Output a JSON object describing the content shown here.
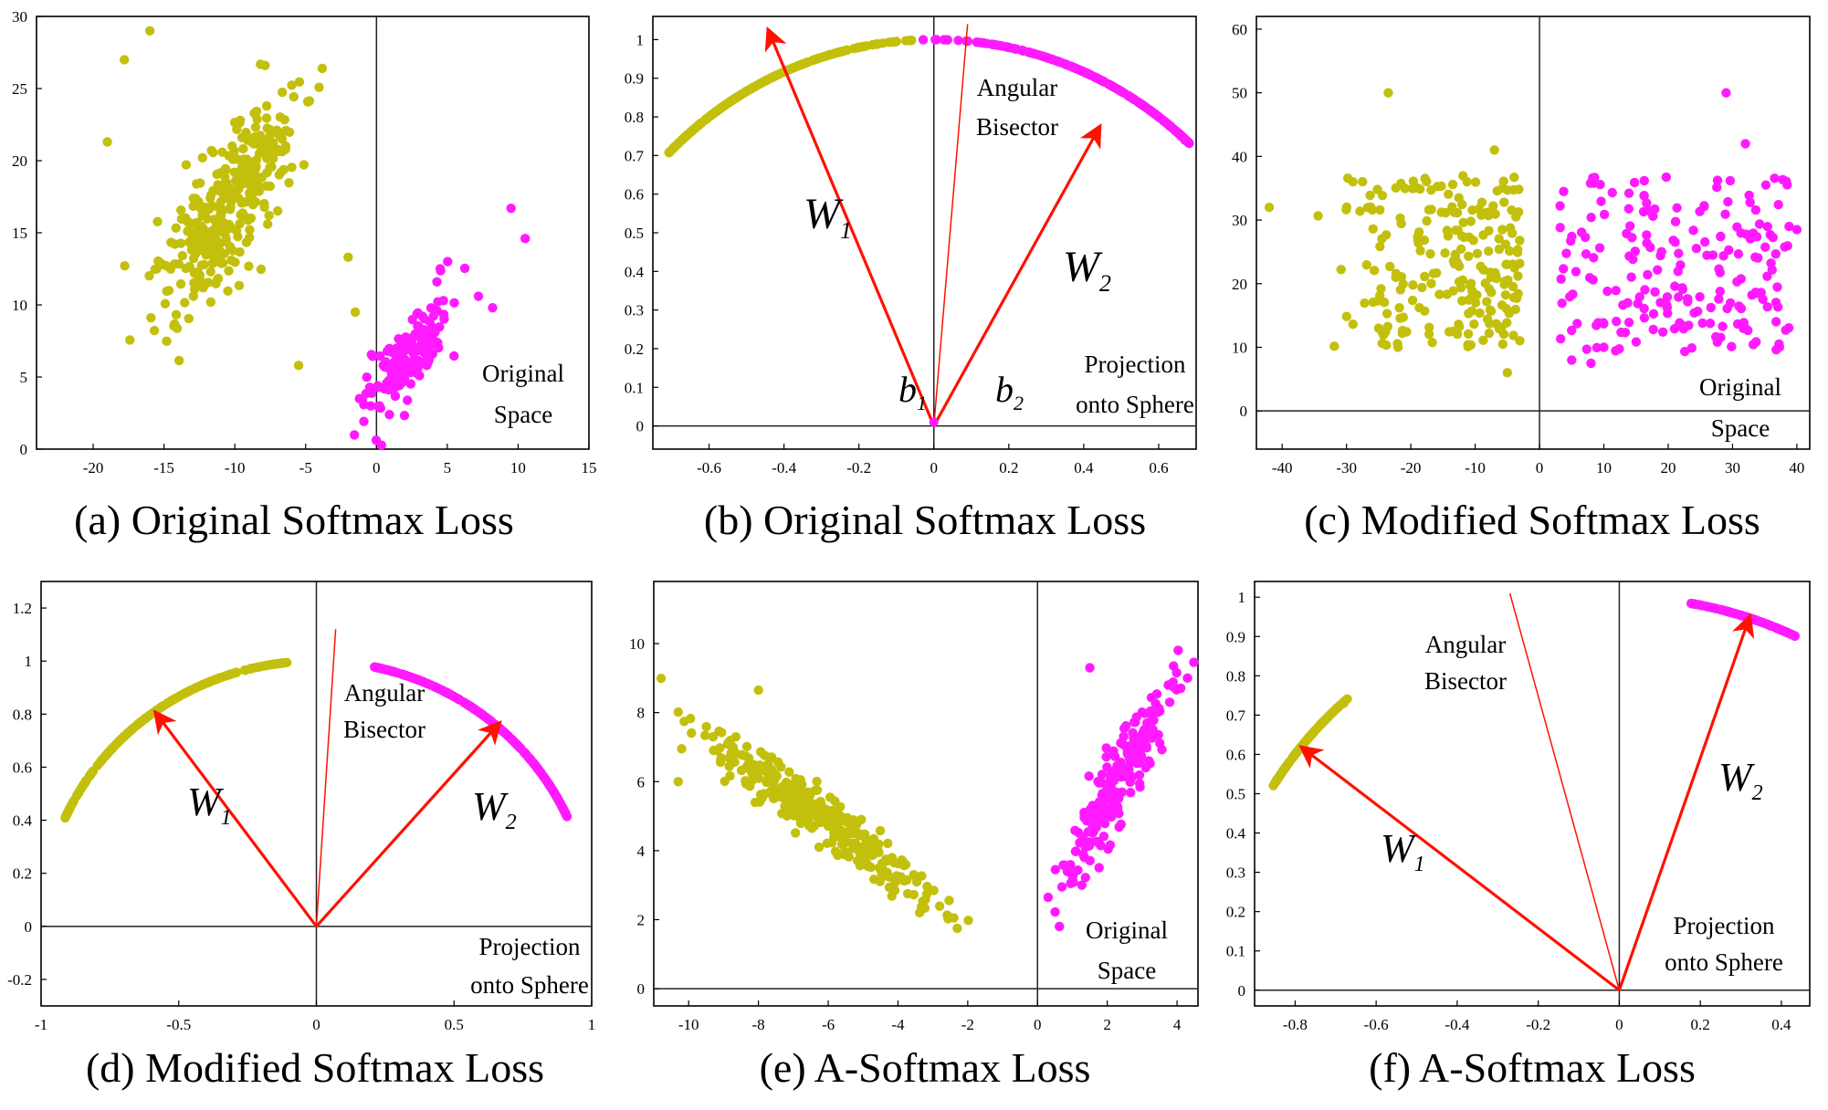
{
  "colors": {
    "class1": "#c3c00d",
    "class2": "#ff1aff",
    "vector": "#ff1100",
    "axis": "#000000"
  },
  "chart_data": [
    {
      "id": "a",
      "type": "scatter",
      "space": "original",
      "caption": "(a) Original Softmax Loss",
      "annotations": [
        "Original",
        "Space"
      ],
      "xlim": [
        -24,
        15
      ],
      "ylim": [
        0,
        30
      ],
      "xticks": [
        -20,
        -15,
        -10,
        -5,
        0,
        5,
        10,
        15
      ],
      "yticks": [
        0,
        5,
        10,
        15,
        20,
        25,
        30
      ],
      "series": [
        {
          "cluster": {
            "type": "ellipse",
            "n": 340,
            "center": [
              -10.5,
              17
            ],
            "major": 7.5,
            "minor": 2.6,
            "angle_deg": 60,
            "seed": 11
          },
          "extra": [
            [
              -19,
              21.3
            ],
            [
              -17.8,
              27
            ],
            [
              -14.5,
              30
            ],
            [
              -16,
              29
            ],
            [
              -2,
              13.3
            ],
            [
              -1.5,
              9.5
            ],
            [
              -5.5,
              5.8
            ]
          ]
        },
        {
          "cluster": {
            "type": "ellipse",
            "n": 150,
            "center": [
              2.3,
              6.5
            ],
            "major": 4.6,
            "minor": 1.6,
            "angle_deg": 58,
            "seed": 12
          },
          "extra": [
            [
              9.5,
              16.7
            ],
            [
              10.5,
              14.6
            ],
            [
              7.2,
              10.6
            ],
            [
              4.5,
              12.5
            ],
            [
              -1.2,
              3.5
            ],
            [
              8.2,
              9.8
            ]
          ]
        }
      ]
    },
    {
      "id": "b",
      "type": "scatter",
      "space": "sphere",
      "caption": "(b) Original Softmax Loss",
      "annotations": [
        "Angular",
        "Bisector",
        "Projection",
        "onto Sphere"
      ],
      "vector_labels": [
        {
          "base": "W",
          "sub": "1"
        },
        {
          "base": "W",
          "sub": "2"
        },
        {
          "base": "b",
          "sub": "1"
        },
        {
          "base": "b",
          "sub": "2"
        }
      ],
      "xlim": [
        -0.75,
        0.7
      ],
      "ylim": [
        -0.06,
        1.06
      ],
      "xticks": [
        -0.6,
        -0.4,
        -0.2,
        0,
        0.2,
        0.4,
        0.6
      ],
      "yticks": [
        0,
        0.1,
        0.2,
        0.3,
        0.4,
        0.5,
        0.6,
        0.7,
        0.8,
        0.9,
        1
      ],
      "series": [
        {
          "arc": {
            "theta_deg": [
              93,
              135
            ],
            "n": 260,
            "mode": "bunch_high",
            "seed": 21
          },
          "extra": [
            [
              -0.28,
              0.96
            ],
            [
              -0.2,
              0.98
            ],
            [
              -0.12,
              0.993
            ],
            [
              -0.06,
              0.998
            ],
            [
              -0.1,
              0.995
            ]
          ]
        },
        {
          "arc": {
            "theta_deg": [
              47,
              92
            ],
            "n": 230,
            "mode": "bunch_low",
            "seed": 22
          },
          "extra": [
            [
              0.66,
              0.75
            ],
            [
              0.67,
              0.74
            ]
          ]
        }
      ],
      "vectors": [
        [
          -0.44,
          1.02
        ],
        [
          0.44,
          0.77
        ]
      ],
      "bisector": [
        0.09,
        1.04
      ],
      "origin_marker": [
        0,
        0.01
      ]
    },
    {
      "id": "c",
      "type": "scatter",
      "space": "original",
      "caption": "(c) Modified Softmax Loss",
      "annotations": [
        "Original",
        "Space"
      ],
      "xlim": [
        -44,
        42
      ],
      "ylim": [
        -6,
        62
      ],
      "xticks": [
        -40,
        -30,
        -20,
        -10,
        0,
        10,
        20,
        30,
        40
      ],
      "yticks": [
        0,
        10,
        20,
        30,
        40,
        50,
        60
      ],
      "series": [
        {
          "cluster": {
            "type": "box",
            "n": 220,
            "x": [
              -36,
              -3
            ],
            "y": [
              10,
              37
            ],
            "bunch_right": true,
            "seed": 31
          },
          "extra": [
            [
              -42,
              32
            ],
            [
              -23.5,
              50
            ],
            [
              -25,
              13
            ],
            [
              -22,
              10
            ],
            [
              -5,
              6
            ],
            [
              -7,
              41
            ],
            [
              -29,
              36
            ]
          ]
        },
        {
          "cluster": {
            "type": "box",
            "n": 200,
            "x": [
              3,
              39
            ],
            "y": [
              9,
              37
            ],
            "bunch_right": false,
            "seed": 32
          },
          "extra": [
            [
              29,
              50
            ],
            [
              32,
              42
            ],
            [
              40,
              28.5
            ],
            [
              5,
              8
            ],
            [
              8,
              7.5
            ],
            [
              10,
              10
            ]
          ]
        }
      ]
    },
    {
      "id": "d",
      "type": "scatter",
      "space": "sphere",
      "caption": "(d) Modified Softmax Loss",
      "annotations": [
        "Angular",
        "Bisector",
        "Projection",
        "onto Sphere"
      ],
      "vector_labels": [
        {
          "base": "W",
          "sub": "1"
        },
        {
          "base": "W",
          "sub": "2"
        }
      ],
      "xlim": [
        -1,
        1
      ],
      "ylim": [
        -0.3,
        1.3
      ],
      "xticks": [
        -1,
        -0.5,
        0,
        0.5,
        1
      ],
      "yticks": [
        -0.2,
        0,
        0.2,
        0.4,
        0.6,
        0.8,
        1,
        1.2
      ],
      "series": [
        {
          "arc": {
            "theta_deg": [
              96,
              156
            ],
            "n": 230,
            "mode": "even",
            "seed": 41
          },
          "extra": []
        },
        {
          "arc": {
            "theta_deg": [
              24,
              78
            ],
            "n": 250,
            "mode": "even",
            "seed": 42
          },
          "extra": []
        }
      ],
      "vectors": [
        [
          -0.58,
          0.8
        ],
        [
          0.66,
          0.76
        ]
      ],
      "bisector": [
        0.07,
        1.12
      ]
    },
    {
      "id": "e",
      "type": "scatter",
      "space": "original",
      "caption": "(e) A-Softmax Loss",
      "annotations": [
        "Original",
        "Space"
      ],
      "xlim": [
        -11,
        4.6
      ],
      "ylim": [
        -0.5,
        11.8
      ],
      "xticks": [
        -10,
        -8,
        -6,
        -4,
        -2,
        0,
        2,
        4
      ],
      "yticks": [
        0,
        2,
        4,
        6,
        8,
        10
      ],
      "series": [
        {
          "cluster": {
            "type": "ellipse",
            "n": 360,
            "center": [
              -6.3,
              5.0
            ],
            "major": 3.6,
            "minor": 0.55,
            "angle_deg": -36,
            "seed": 51
          },
          "extra": [
            [
              -8,
              8.65
            ],
            [
              -10.2,
              6.95
            ],
            [
              -10.3,
              6.0
            ],
            [
              -2.3,
              1.75
            ],
            [
              -2.4,
              2.05
            ],
            [
              -9.3,
              7.3
            ]
          ]
        },
        {
          "cluster": {
            "type": "ellipse",
            "n": 210,
            "center": [
              2.3,
              6.0
            ],
            "major": 3.0,
            "minor": 0.55,
            "angle_deg": 64,
            "seed": 52
          },
          "extra": [
            [
              4.3,
              9.0
            ],
            [
              0.7,
              2.95
            ],
            [
              0.95,
              3.05
            ],
            [
              3.9,
              9.35
            ],
            [
              1.5,
              9.3
            ]
          ]
        }
      ]
    },
    {
      "id": "f",
      "type": "scatter",
      "space": "sphere",
      "caption": "(f) A-Softmax Loss",
      "annotations": [
        "Angular",
        "Bisector",
        "Projection",
        "onto Sphere"
      ],
      "vector_labels": [
        {
          "base": "W",
          "sub": "1"
        },
        {
          "base": "W",
          "sub": "2"
        }
      ],
      "xlim": [
        -0.9,
        0.47
      ],
      "ylim": [
        -0.04,
        1.04
      ],
      "xticks": [
        -0.8,
        -0.6,
        -0.4,
        -0.2,
        0,
        0.2,
        0.4
      ],
      "yticks": [
        0,
        0.1,
        0.2,
        0.3,
        0.4,
        0.5,
        0.6,
        0.7,
        0.8,
        0.9,
        1
      ],
      "series": [
        {
          "arc": {
            "theta_deg": [
              132,
              149
            ],
            "n": 130,
            "mode": "even",
            "seed": 61
          },
          "extra": [
            [
              -0.68,
              0.73
            ]
          ]
        },
        {
          "arc": {
            "theta_deg": [
              64,
              80
            ],
            "n": 130,
            "mode": "even",
            "seed": 62
          },
          "extra": []
        }
      ],
      "vectors": [
        [
          -0.78,
          0.615
        ],
        [
          0.32,
          0.945
        ]
      ],
      "bisector": [
        -0.27,
        1.01
      ]
    }
  ]
}
